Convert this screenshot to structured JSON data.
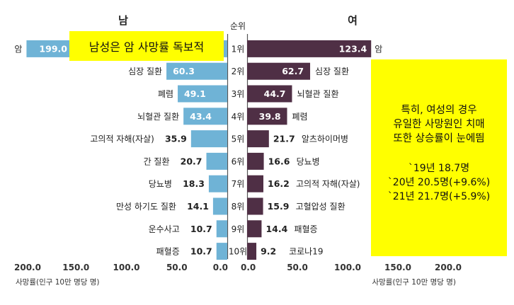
{
  "chart_data": {
    "type": "bar",
    "title_male": "남",
    "title_female": "여",
    "rank_header": "순위",
    "rank_labels": [
      "1위",
      "2위",
      "3위",
      "4위",
      "5위",
      "6위",
      "7위",
      "8위",
      "9위",
      "10위"
    ],
    "male": {
      "name": "남",
      "categories": [
        "암",
        "심장 질환",
        "폐렴",
        "뇌혈관 질환",
        "고의적 자해(자살)",
        "간 질환",
        "당뇨병",
        "만성 하기도 질환",
        "운수사고",
        "패혈증"
      ],
      "values": [
        199.0,
        60.3,
        49.1,
        43.4,
        35.9,
        20.7,
        18.3,
        14.1,
        10.7,
        10.7
      ],
      "value_labels": [
        "199.0",
        "60.3",
        "49.1",
        "43.4",
        "35.9",
        "20.7",
        "18.3",
        "14.1",
        "10.7",
        "10.7"
      ]
    },
    "female": {
      "name": "여",
      "categories": [
        "암",
        "심장 질환",
        "뇌혈관 질환",
        "폐렴",
        "알츠하이머병",
        "당뇨병",
        "고의적 자해(자살)",
        "고혈압성 질환",
        "패혈증",
        "코로나19"
      ],
      "values": [
        123.4,
        62.7,
        44.7,
        39.8,
        21.7,
        16.6,
        16.2,
        15.9,
        14.4,
        9.2
      ],
      "value_labels": [
        "123.4",
        "62.7",
        "44.7",
        "39.8",
        "21.7",
        "16.6",
        "16.2",
        "15.9",
        "14.4",
        "9.2"
      ]
    },
    "left_axis_ticks": [
      "200.0",
      "150.0",
      "100.0",
      "50.0",
      "0.0"
    ],
    "right_axis_ticks": [
      "0.0",
      "50.0",
      "100.0",
      "150.0",
      "200.0"
    ],
    "xlabel_left": "사망률(인구 10만 명당 명)",
    "xlabel_right": "사망률(인구 10만 명당 명)",
    "xlim": [
      0,
      200
    ],
    "colors": {
      "male": "#6fb3d6",
      "female": "#4f2f45",
      "axis": "#555555",
      "highlight": "#ffff00"
    }
  },
  "annotations": {
    "left_note": "남성은 암 사망률 독보적",
    "right_note_lines": [
      "특히, 여성의 경우",
      "유일한 사망원인 치매",
      "또한 상승률이 눈에띔"
    ],
    "right_stats": [
      "`19년 18.7명",
      "`20년 20.5명(+9.6%)",
      "`21년 21.7명(+5.9%)"
    ]
  }
}
